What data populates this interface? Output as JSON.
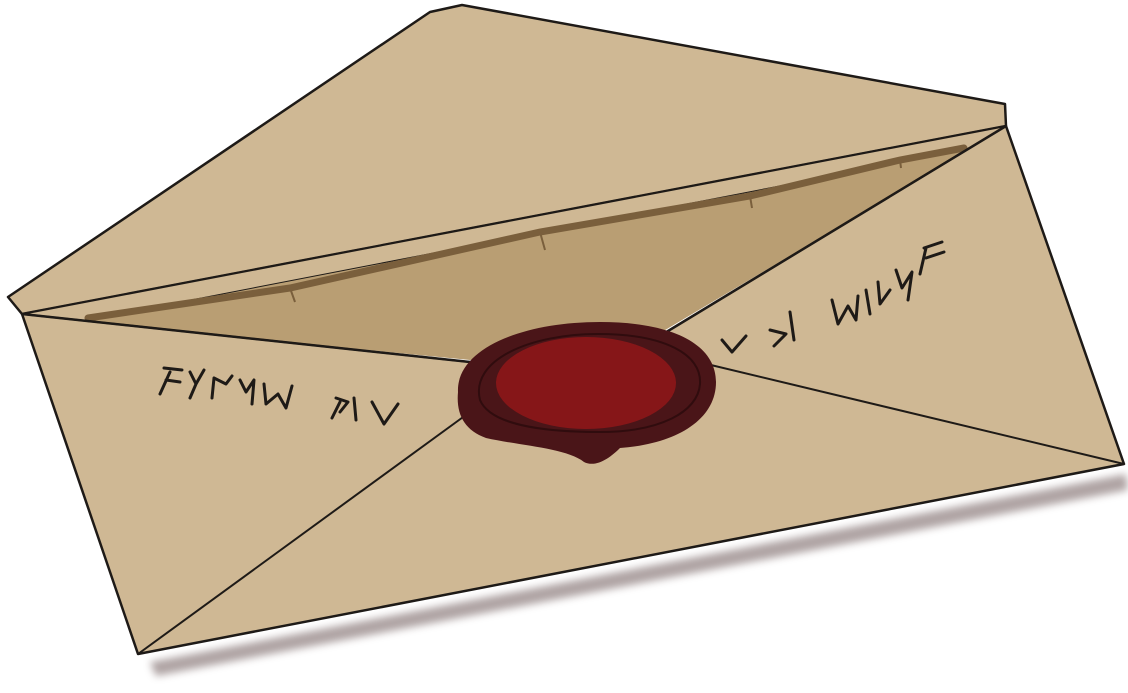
{
  "scene": {
    "subject": "sealed-envelope",
    "colors": {
      "background": "#ffffff",
      "paper": "#cfb894",
      "paper_inner": "#b99e73",
      "paper_groove": "#7a5f3c",
      "outline": "#1e1a17",
      "shadow": "#6e5a5a",
      "wax_outer": "#4a1518",
      "wax_inner": "#861618",
      "rune_ink": "#1e1a17"
    },
    "icons": [
      "wax-seal-icon",
      "runic-inscription-icon"
    ]
  }
}
